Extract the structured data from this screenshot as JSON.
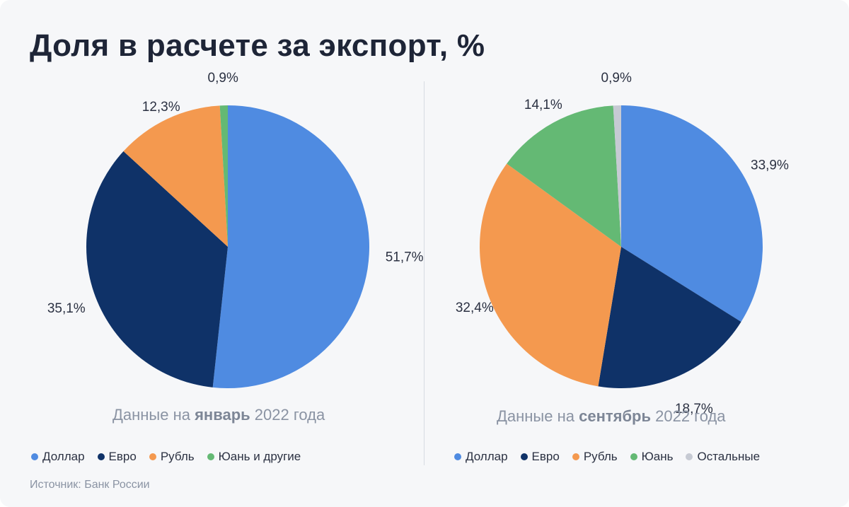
{
  "title": "Доля в расчете за экспорт, %",
  "source": "Источник: Банк России",
  "colors": {
    "dollar": "#4f8be1",
    "euro": "#0f3268",
    "ruble": "#f4994f",
    "yuan": "#64b974",
    "other": "#c6cad3"
  },
  "chart_data": [
    {
      "type": "pie",
      "caption": {
        "prefix": "Данные на ",
        "bold": "январь",
        "suffix": " 2022 года"
      },
      "slices": [
        {
          "label": "Доллар",
          "value": 51.7,
          "value_label": "51,7%",
          "color": "#4f8be1"
        },
        {
          "label": "Евро",
          "value": 35.1,
          "value_label": "35,1%",
          "color": "#0f3268"
        },
        {
          "label": "Рубль",
          "value": 12.3,
          "value_label": "12,3%",
          "color": "#f4994f"
        },
        {
          "label": "Юань и другие",
          "value": 0.9,
          "value_label": "0,9%",
          "color": "#64b974"
        }
      ],
      "legend": [
        "Доллар",
        "Евро",
        "Рубль",
        "Юань и другие"
      ]
    },
    {
      "type": "pie",
      "caption": {
        "prefix": "Данные на ",
        "bold": "сентябрь",
        "suffix": " 2022 года"
      },
      "slices": [
        {
          "label": "Доллар",
          "value": 33.9,
          "value_label": "33,9%",
          "color": "#4f8be1"
        },
        {
          "label": "Евро",
          "value": 18.7,
          "value_label": "18,7%",
          "color": "#0f3268"
        },
        {
          "label": "Рубль",
          "value": 32.4,
          "value_label": "32,4%",
          "color": "#f4994f"
        },
        {
          "label": "Юань",
          "value": 14.1,
          "value_label": "14,1%",
          "color": "#64b974"
        },
        {
          "label": "Остальные",
          "value": 0.9,
          "value_label": "0,9%",
          "color": "#c6cad3"
        }
      ],
      "legend": [
        "Доллар",
        "Евро",
        "Рубль",
        "Юань",
        "Остальные"
      ]
    }
  ]
}
